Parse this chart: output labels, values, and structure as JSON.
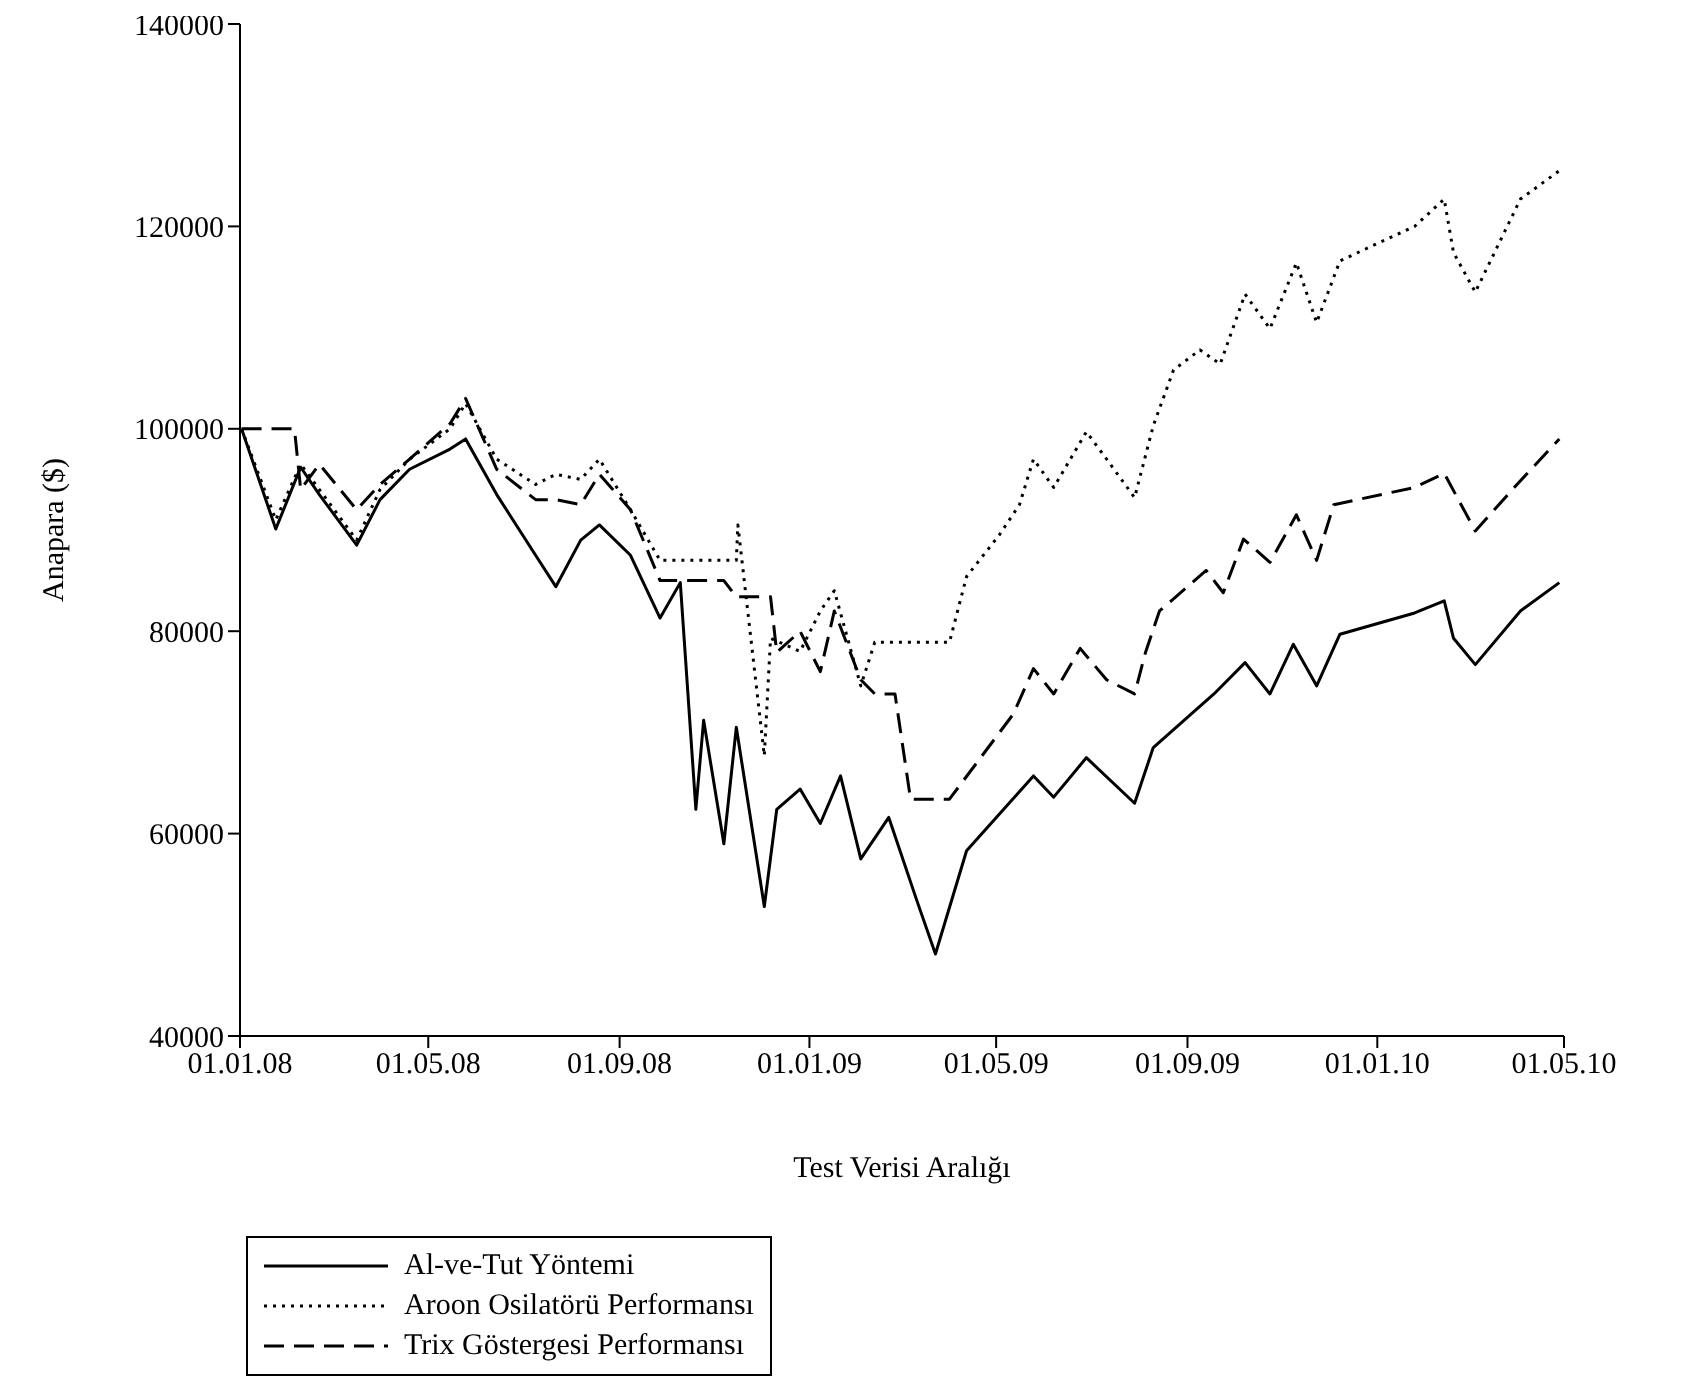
{
  "chart_data": {
    "type": "line",
    "xlabel": "Test Verisi Aralığı",
    "ylabel": "Anapara ($)",
    "xlim": [
      "2008-01-01",
      "2010-05-01"
    ],
    "xticks": [
      {
        "value": "2008-01-01",
        "label": "01.01.08"
      },
      {
        "value": "2008-05-01",
        "label": "01.05.08"
      },
      {
        "value": "2008-09-01",
        "label": "01.09.08"
      },
      {
        "value": "2009-01-01",
        "label": "01.01.09"
      },
      {
        "value": "2009-05-01",
        "label": "01.05.09"
      },
      {
        "value": "2009-09-01",
        "label": "01.09.09"
      },
      {
        "value": "2010-01-01",
        "label": "01.01.10"
      },
      {
        "value": "2010-05-01",
        "label": "01.05.10"
      }
    ],
    "ylim": [
      40000,
      140000
    ],
    "yticks": [
      40000,
      60000,
      80000,
      100000,
      120000,
      140000
    ],
    "legend": "bottom left",
    "marker": "none",
    "series": [
      {
        "name": "Al-ve-Tut Yöntemi",
        "color": "#000000",
        "line_style": "solid",
        "x": [
          "2008-01-02",
          "2008-01-24",
          "2008-02-09",
          "2008-02-21",
          "2008-03-16",
          "2008-03-31",
          "2008-04-19",
          "2008-05-15",
          "2008-05-25",
          "2008-06-14",
          "2008-07-09",
          "2008-07-22",
          "2008-08-07",
          "2008-08-19",
          "2008-09-08",
          "2008-09-27",
          "2008-10-10",
          "2008-10-20",
          "2008-10-25",
          "2008-11-07",
          "2008-11-15",
          "2008-12-03",
          "2008-12-11",
          "2008-12-26",
          "2009-01-08",
          "2009-01-21",
          "2009-02-03",
          "2009-02-21",
          "2009-03-11",
          "2009-03-23",
          "2009-04-12",
          "2009-05-25",
          "2009-06-07",
          "2009-06-28",
          "2009-07-29",
          "2009-08-10",
          "2009-09-18",
          "2009-10-08",
          "2009-10-24",
          "2009-11-08",
          "2009-11-23",
          "2009-12-08",
          "2010-01-25",
          "2010-02-13",
          "2010-02-19",
          "2010-03-05",
          "2010-04-03",
          "2010-04-28"
        ],
        "values": [
          100000,
          90100,
          96200,
          93500,
          88500,
          93000,
          96000,
          98000,
          99000,
          93500,
          87500,
          84400,
          89000,
          90500,
          87500,
          81300,
          84800,
          62400,
          71200,
          59000,
          70500,
          52800,
          62400,
          64400,
          61000,
          65700,
          57500,
          61600,
          53400,
          48100,
          58300,
          65700,
          63600,
          67500,
          63000,
          68500,
          73800,
          76900,
          73800,
          78700,
          74600,
          79700,
          81800,
          83000,
          79300,
          76700,
          82000,
          84800
        ]
      },
      {
        "name": "Aroon Osilatörü Performansı",
        "color": "#000000",
        "line_style": "dotted",
        "x": [
          "2008-01-02",
          "2008-01-24",
          "2008-02-09",
          "2008-02-21",
          "2008-03-16",
          "2008-03-31",
          "2008-04-19",
          "2008-05-15",
          "2008-05-25",
          "2008-06-14",
          "2008-07-09",
          "2008-07-22",
          "2008-08-07",
          "2008-08-19",
          "2008-09-08",
          "2008-09-27",
          "2008-10-10",
          "2008-11-15",
          "2008-11-16",
          "2008-12-03",
          "2008-12-07",
          "2008-12-26",
          "2009-01-08",
          "2009-01-17",
          "2009-02-03",
          "2009-02-12",
          "2009-04-01",
          "2009-04-12",
          "2009-05-03",
          "2009-05-16",
          "2009-05-25",
          "2009-06-07",
          "2009-06-28",
          "2009-07-11",
          "2009-07-29",
          "2009-08-10",
          "2009-08-23",
          "2009-09-09",
          "2009-09-22",
          "2009-10-08",
          "2009-10-24",
          "2009-11-10",
          "2009-11-23",
          "2009-12-08",
          "2010-01-25",
          "2010-02-13",
          "2010-02-19",
          "2010-03-05",
          "2010-04-03",
          "2010-04-28"
        ],
        "values": [
          100000,
          91000,
          96500,
          94000,
          89000,
          94000,
          97000,
          100000,
          102500,
          97000,
          94500,
          95500,
          95000,
          97000,
          92000,
          87000,
          87000,
          87000,
          90500,
          67700,
          79300,
          78000,
          82000,
          84000,
          74600,
          78900,
          78900,
          85400,
          89500,
          92500,
          97000,
          94200,
          99700,
          97000,
          93200,
          100300,
          105800,
          107800,
          106400,
          113300,
          109900,
          116400,
          110500,
          116600,
          120000,
          122700,
          117400,
          113500,
          122700,
          125500
        ]
      },
      {
        "name": "Trix Göstergesi Performansı",
        "color": "#000000",
        "line_style": "dashed",
        "x": [
          "2008-01-02",
          "2008-02-05",
          "2008-02-09",
          "2008-02-21",
          "2008-03-16",
          "2008-03-31",
          "2008-04-19",
          "2008-05-15",
          "2008-05-25",
          "2008-06-14",
          "2008-07-09",
          "2008-07-22",
          "2008-08-07",
          "2008-08-19",
          "2008-09-08",
          "2008-09-27",
          "2008-10-10",
          "2008-10-25",
          "2008-11-07",
          "2008-11-15",
          "2008-12-03",
          "2008-12-07",
          "2008-12-11",
          "2008-12-26",
          "2009-01-08",
          "2009-01-17",
          "2009-02-03",
          "2009-02-12",
          "2009-02-25",
          "2009-03-07",
          "2009-04-01",
          "2009-05-12",
          "2009-05-25",
          "2009-06-07",
          "2009-06-24",
          "2009-07-11",
          "2009-07-29",
          "2009-08-05",
          "2009-08-14",
          "2009-09-13",
          "2009-09-24",
          "2009-10-07",
          "2009-10-24",
          "2009-11-10",
          "2009-11-23",
          "2009-12-04",
          "2010-01-25",
          "2010-02-13",
          "2010-03-05",
          "2010-03-30",
          "2010-04-28"
        ],
        "values": [
          100000,
          100000,
          94000,
          96500,
          92000,
          94500,
          97000,
          100500,
          103000,
          96000,
          93000,
          93000,
          92500,
          95500,
          92000,
          85000,
          85000,
          85000,
          85000,
          83400,
          83400,
          83400,
          77900,
          80000,
          76000,
          82000,
          75200,
          73800,
          73800,
          63400,
          63400,
          71800,
          76300,
          73800,
          78300,
          75200,
          73800,
          77900,
          82000,
          86000,
          83800,
          89100,
          86800,
          91500,
          87000,
          92500,
          94200,
          95600,
          89900,
          94200,
          99000
        ]
      }
    ]
  }
}
